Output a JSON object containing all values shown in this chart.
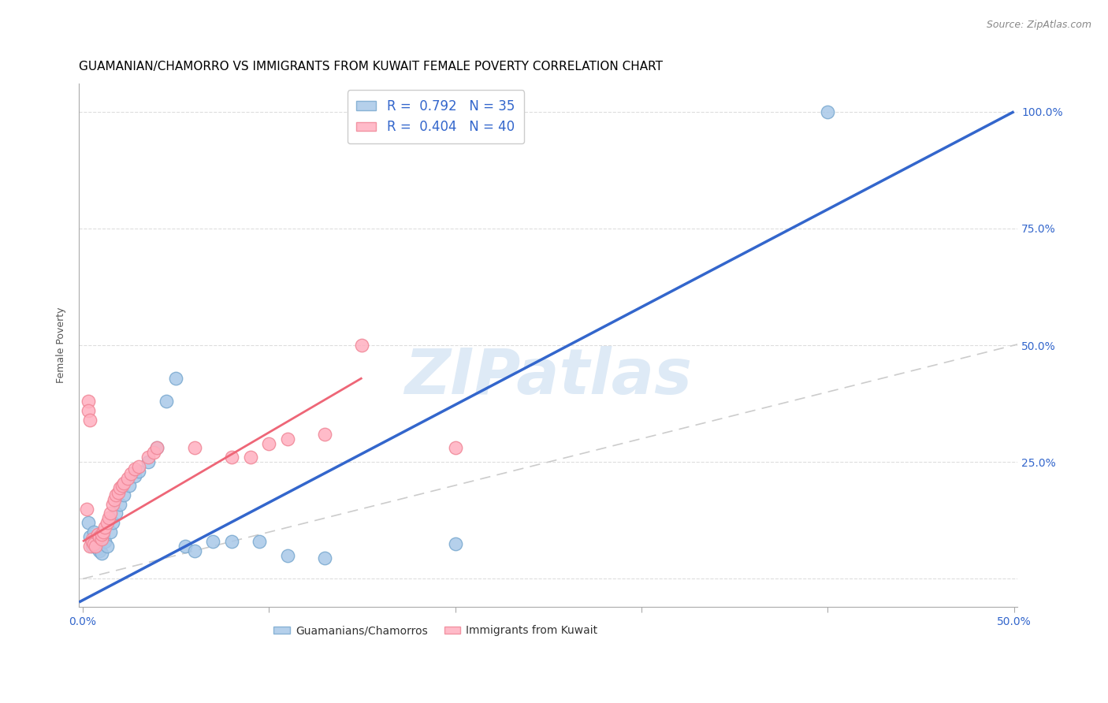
{
  "title": "GUAMANIAN/CHAMORRO VS IMMIGRANTS FROM KUWAIT FEMALE POVERTY CORRELATION CHART",
  "source": "Source: ZipAtlas.com",
  "ylabel": "Female Poverty",
  "xlim": [
    -0.002,
    0.502
  ],
  "ylim": [
    -0.06,
    1.06
  ],
  "xtick_positions": [
    0.0,
    0.1,
    0.2,
    0.3,
    0.4,
    0.5
  ],
  "xticklabels": [
    "0.0%",
    "",
    "",
    "",
    "",
    "50.0%"
  ],
  "ytick_positions": [
    0.0,
    0.25,
    0.5,
    0.75,
    1.0
  ],
  "right_yticklabels": [
    "",
    "25.0%",
    "50.0%",
    "75.0%",
    "100.0%"
  ],
  "blue_color": "#A8C8E8",
  "pink_color": "#FFB0C0",
  "blue_edge_color": "#7BAAD0",
  "pink_edge_color": "#F08898",
  "blue_line_color": "#3366CC",
  "pink_line_color": "#EE6677",
  "identity_line_color": "#CCCCCC",
  "watermark_text": "ZIPatlas",
  "watermark_color": "#C8DCF0",
  "legend_label_blue_top": "R =  0.792   N = 35",
  "legend_label_pink_top": "R =  0.404   N = 40",
  "legend_label_blue_bottom": "Guamanians/Chamorros",
  "legend_label_pink_bottom": "Immigrants from Kuwait",
  "blue_scatter_x": [
    0.003,
    0.004,
    0.005,
    0.005,
    0.006,
    0.007,
    0.007,
    0.008,
    0.009,
    0.01,
    0.01,
    0.011,
    0.012,
    0.013,
    0.015,
    0.016,
    0.018,
    0.02,
    0.022,
    0.025,
    0.028,
    0.03,
    0.035,
    0.04,
    0.045,
    0.05,
    0.055,
    0.06,
    0.07,
    0.08,
    0.095,
    0.11,
    0.13,
    0.2,
    0.4
  ],
  "blue_scatter_y": [
    0.12,
    0.09,
    0.08,
    0.07,
    0.1,
    0.085,
    0.075,
    0.065,
    0.06,
    0.055,
    0.085,
    0.09,
    0.08,
    0.07,
    0.1,
    0.12,
    0.14,
    0.16,
    0.18,
    0.2,
    0.22,
    0.23,
    0.25,
    0.28,
    0.38,
    0.43,
    0.07,
    0.06,
    0.08,
    0.08,
    0.08,
    0.05,
    0.045,
    0.075,
    1.0
  ],
  "pink_scatter_x": [
    0.002,
    0.003,
    0.003,
    0.004,
    0.004,
    0.005,
    0.005,
    0.006,
    0.007,
    0.008,
    0.009,
    0.01,
    0.01,
    0.011,
    0.012,
    0.013,
    0.014,
    0.015,
    0.016,
    0.017,
    0.018,
    0.019,
    0.02,
    0.021,
    0.022,
    0.024,
    0.026,
    0.028,
    0.03,
    0.035,
    0.038,
    0.04,
    0.06,
    0.08,
    0.09,
    0.1,
    0.11,
    0.13,
    0.15,
    0.2
  ],
  "pink_scatter_y": [
    0.15,
    0.38,
    0.36,
    0.34,
    0.07,
    0.085,
    0.08,
    0.075,
    0.07,
    0.095,
    0.09,
    0.085,
    0.095,
    0.1,
    0.11,
    0.12,
    0.13,
    0.14,
    0.16,
    0.17,
    0.18,
    0.185,
    0.195,
    0.2,
    0.205,
    0.215,
    0.225,
    0.235,
    0.24,
    0.26,
    0.27,
    0.28,
    0.28,
    0.26,
    0.26,
    0.29,
    0.3,
    0.31,
    0.5,
    0.28
  ],
  "blue_line_x": [
    -0.002,
    0.5
  ],
  "blue_line_y": [
    -0.05,
    1.0
  ],
  "pink_line_x": [
    0.0,
    0.15
  ],
  "pink_line_y": [
    0.08,
    0.43
  ],
  "identity_line_x": [
    0.0,
    0.502
  ],
  "identity_line_y": [
    0.0,
    0.502
  ],
  "title_fontsize": 11,
  "axis_label_fontsize": 9,
  "tick_fontsize": 10,
  "source_fontsize": 9,
  "legend_fontsize": 12
}
